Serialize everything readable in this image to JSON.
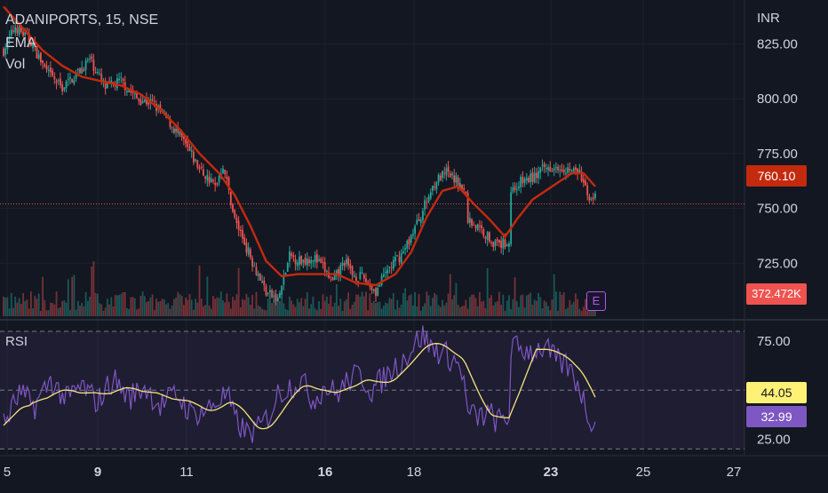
{
  "header": {
    "title": "ADANIPORTS, 15, NSE",
    "ema_label": "EMA",
    "vol_label": "Vol",
    "rsi_label": "RSI",
    "currency": "INR",
    "earnings_marker": "E"
  },
  "price_axis": {
    "ticks": [
      "825.00",
      "800.00",
      "775.00",
      "750.00",
      "725.00"
    ],
    "tick_values": [
      825,
      800,
      775,
      750,
      725
    ],
    "range": [
      700,
      845
    ]
  },
  "rsi_axis": {
    "ticks": [
      "75.00",
      "25.00"
    ],
    "tick_values": [
      75,
      25
    ],
    "range": [
      17,
      85
    ],
    "band_upper": 80,
    "band_mid": 50,
    "band_lower": 20
  },
  "time_axis": {
    "labels": [
      "5",
      "9",
      "11",
      "16",
      "18",
      "23",
      "25",
      "27"
    ],
    "bold": [
      false,
      true,
      false,
      true,
      false,
      true,
      false,
      false
    ]
  },
  "tags": {
    "last_price": "760.10",
    "volume": "372.472K",
    "rsi_ma": "44.05",
    "rsi_value": "32.99"
  },
  "colors": {
    "background": "#131722",
    "up": "#26a69a",
    "down": "#ef5350",
    "ema": "#c42a0e",
    "rsi_line": "#7e57c2",
    "rsi_ma": "#f7e47b",
    "price_tag": "#c42a0e",
    "volume_tag": "#ef5350",
    "rsi_ma_tag": "#fff176",
    "rsi_value_tag": "#7e57c2",
    "last_price_line": "#ef5350"
  },
  "chart_data": {
    "type": "candlestick",
    "symbol": "ADANIPORTS",
    "interval": "15",
    "exchange": "NSE",
    "close_anchors": [
      {
        "x": 0,
        "y": 822
      },
      {
        "x": 6,
        "y": 833
      },
      {
        "x": 14,
        "y": 826
      },
      {
        "x": 22,
        "y": 812
      },
      {
        "x": 30,
        "y": 805
      },
      {
        "x": 38,
        "y": 812
      },
      {
        "x": 44,
        "y": 818
      },
      {
        "x": 52,
        "y": 805
      },
      {
        "x": 60,
        "y": 808
      },
      {
        "x": 68,
        "y": 800
      },
      {
        "x": 76,
        "y": 798
      },
      {
        "x": 84,
        "y": 790
      },
      {
        "x": 92,
        "y": 780
      },
      {
        "x": 100,
        "y": 768
      },
      {
        "x": 108,
        "y": 760
      },
      {
        "x": 112,
        "y": 770
      },
      {
        "x": 118,
        "y": 745
      },
      {
        "x": 126,
        "y": 728
      },
      {
        "x": 134,
        "y": 712
      },
      {
        "x": 140,
        "y": 708
      },
      {
        "x": 146,
        "y": 728
      },
      {
        "x": 152,
        "y": 726
      },
      {
        "x": 158,
        "y": 728
      },
      {
        "x": 164,
        "y": 722
      },
      {
        "x": 168,
        "y": 716
      },
      {
        "x": 174,
        "y": 726
      },
      {
        "x": 178,
        "y": 720
      },
      {
        "x": 184,
        "y": 718
      },
      {
        "x": 190,
        "y": 712
      },
      {
        "x": 196,
        "y": 722
      },
      {
        "x": 204,
        "y": 730
      },
      {
        "x": 212,
        "y": 745
      },
      {
        "x": 220,
        "y": 762
      },
      {
        "x": 226,
        "y": 766
      },
      {
        "x": 232,
        "y": 762
      },
      {
        "x": 236,
        "y": 756
      },
      {
        "x": 237,
        "y": 745
      },
      {
        "x": 244,
        "y": 740
      },
      {
        "x": 252,
        "y": 733
      },
      {
        "x": 258,
        "y": 735
      },
      {
        "x": 259,
        "y": 758
      },
      {
        "x": 264,
        "y": 762
      },
      {
        "x": 270,
        "y": 764
      },
      {
        "x": 276,
        "y": 768
      },
      {
        "x": 282,
        "y": 770
      },
      {
        "x": 288,
        "y": 768
      },
      {
        "x": 294,
        "y": 766
      },
      {
        "x": 298,
        "y": 756
      },
      {
        "x": 302,
        "y": 755
      }
    ],
    "ema_anchors": [
      {
        "x": 0,
        "y": 842
      },
      {
        "x": 10,
        "y": 832
      },
      {
        "x": 20,
        "y": 822
      },
      {
        "x": 30,
        "y": 815
      },
      {
        "x": 40,
        "y": 810
      },
      {
        "x": 50,
        "y": 808
      },
      {
        "x": 60,
        "y": 806
      },
      {
        "x": 70,
        "y": 802
      },
      {
        "x": 80,
        "y": 795
      },
      {
        "x": 90,
        "y": 786
      },
      {
        "x": 100,
        "y": 775
      },
      {
        "x": 110,
        "y": 766
      },
      {
        "x": 118,
        "y": 756
      },
      {
        "x": 126,
        "y": 742
      },
      {
        "x": 134,
        "y": 726
      },
      {
        "x": 142,
        "y": 719
      },
      {
        "x": 150,
        "y": 720
      },
      {
        "x": 160,
        "y": 720
      },
      {
        "x": 170,
        "y": 720
      },
      {
        "x": 180,
        "y": 716
      },
      {
        "x": 190,
        "y": 715
      },
      {
        "x": 200,
        "y": 720
      },
      {
        "x": 208,
        "y": 730
      },
      {
        "x": 216,
        "y": 746
      },
      {
        "x": 224,
        "y": 758
      },
      {
        "x": 232,
        "y": 760
      },
      {
        "x": 240,
        "y": 752
      },
      {
        "x": 248,
        "y": 745
      },
      {
        "x": 256,
        "y": 737
      },
      {
        "x": 262,
        "y": 745
      },
      {
        "x": 270,
        "y": 754
      },
      {
        "x": 280,
        "y": 760
      },
      {
        "x": 290,
        "y": 766
      },
      {
        "x": 296,
        "y": 766
      },
      {
        "x": 302,
        "y": 760
      }
    ],
    "rsi_anchors": [
      {
        "x": 0,
        "y": 32
      },
      {
        "x": 8,
        "y": 48
      },
      {
        "x": 16,
        "y": 42
      },
      {
        "x": 24,
        "y": 55
      },
      {
        "x": 32,
        "y": 45
      },
      {
        "x": 40,
        "y": 52
      },
      {
        "x": 48,
        "y": 44
      },
      {
        "x": 56,
        "y": 56
      },
      {
        "x": 64,
        "y": 46
      },
      {
        "x": 72,
        "y": 52
      },
      {
        "x": 80,
        "y": 42
      },
      {
        "x": 88,
        "y": 48
      },
      {
        "x": 96,
        "y": 38
      },
      {
        "x": 104,
        "y": 40
      },
      {
        "x": 110,
        "y": 45
      },
      {
        "x": 114,
        "y": 48
      },
      {
        "x": 118,
        "y": 35
      },
      {
        "x": 124,
        "y": 28
      },
      {
        "x": 130,
        "y": 30
      },
      {
        "x": 136,
        "y": 38
      },
      {
        "x": 140,
        "y": 48
      },
      {
        "x": 146,
        "y": 52
      },
      {
        "x": 152,
        "y": 55
      },
      {
        "x": 158,
        "y": 45
      },
      {
        "x": 164,
        "y": 52
      },
      {
        "x": 170,
        "y": 48
      },
      {
        "x": 176,
        "y": 55
      },
      {
        "x": 182,
        "y": 58
      },
      {
        "x": 188,
        "y": 50
      },
      {
        "x": 194,
        "y": 56
      },
      {
        "x": 200,
        "y": 62
      },
      {
        "x": 206,
        "y": 68
      },
      {
        "x": 210,
        "y": 74
      },
      {
        "x": 214,
        "y": 78
      },
      {
        "x": 218,
        "y": 72
      },
      {
        "x": 222,
        "y": 70
      },
      {
        "x": 226,
        "y": 68
      },
      {
        "x": 230,
        "y": 65
      },
      {
        "x": 234,
        "y": 60
      },
      {
        "x": 237,
        "y": 38
      },
      {
        "x": 242,
        "y": 36
      },
      {
        "x": 248,
        "y": 38
      },
      {
        "x": 252,
        "y": 34
      },
      {
        "x": 256,
        "y": 35
      },
      {
        "x": 258,
        "y": 36
      },
      {
        "x": 259,
        "y": 72
      },
      {
        "x": 264,
        "y": 71
      },
      {
        "x": 270,
        "y": 70
      },
      {
        "x": 276,
        "y": 72
      },
      {
        "x": 282,
        "y": 65
      },
      {
        "x": 288,
        "y": 62
      },
      {
        "x": 294,
        "y": 52
      },
      {
        "x": 298,
        "y": 38
      },
      {
        "x": 302,
        "y": 33
      }
    ],
    "rsi_ma_period": 14,
    "ema_period": 20,
    "last_price": 760.1,
    "last_rsi": 32.99,
    "last_rsi_ma": 44.05
  }
}
